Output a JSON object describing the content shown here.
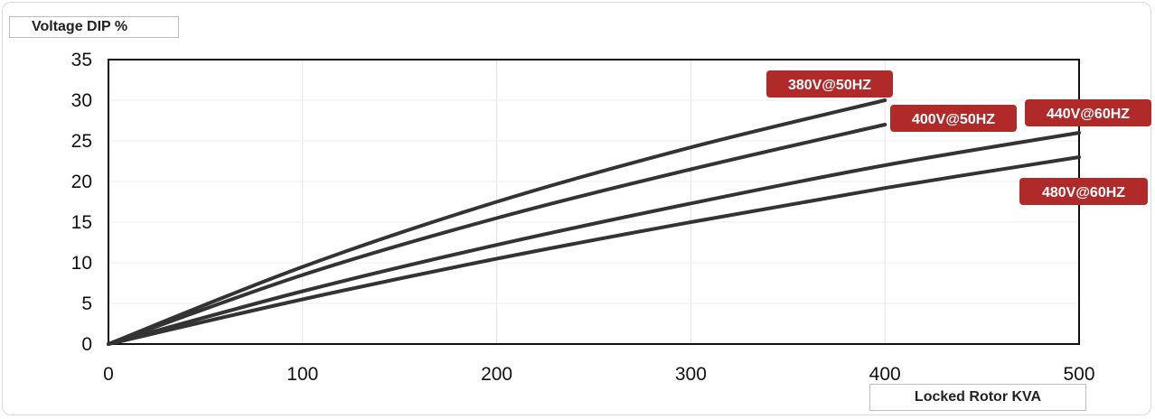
{
  "chart_data": {
    "type": "line",
    "ylabel": "Voltage DIP %",
    "xlabel": "Locked Rotor KVA",
    "xlim": [
      0,
      500
    ],
    "ylim": [
      0,
      35
    ],
    "xticks": [
      0,
      100,
      200,
      300,
      400,
      500
    ],
    "yticks": [
      0,
      5,
      10,
      15,
      20,
      25,
      30,
      35
    ],
    "grid": true,
    "series": [
      {
        "name": "380V@50HZ",
        "x": [
          0,
          100,
          200,
          300,
          400
        ],
        "y": [
          0,
          9.5,
          17.5,
          24.2,
          30
        ]
      },
      {
        "name": "400V@50HZ",
        "x": [
          0,
          100,
          200,
          300,
          400
        ],
        "y": [
          0,
          8.5,
          15.5,
          21.5,
          27
        ]
      },
      {
        "name": "440V@60HZ",
        "x": [
          0,
          100,
          200,
          300,
          400,
          500
        ],
        "y": [
          0,
          6.5,
          12.2,
          17.3,
          22,
          26
        ]
      },
      {
        "name": "480V@60HZ",
        "x": [
          0,
          100,
          200,
          300,
          400,
          500
        ],
        "y": [
          0,
          5.5,
          10.5,
          15.0,
          19.2,
          23
        ]
      }
    ],
    "label_color": "#b02a2a",
    "line_color": "#333333"
  }
}
